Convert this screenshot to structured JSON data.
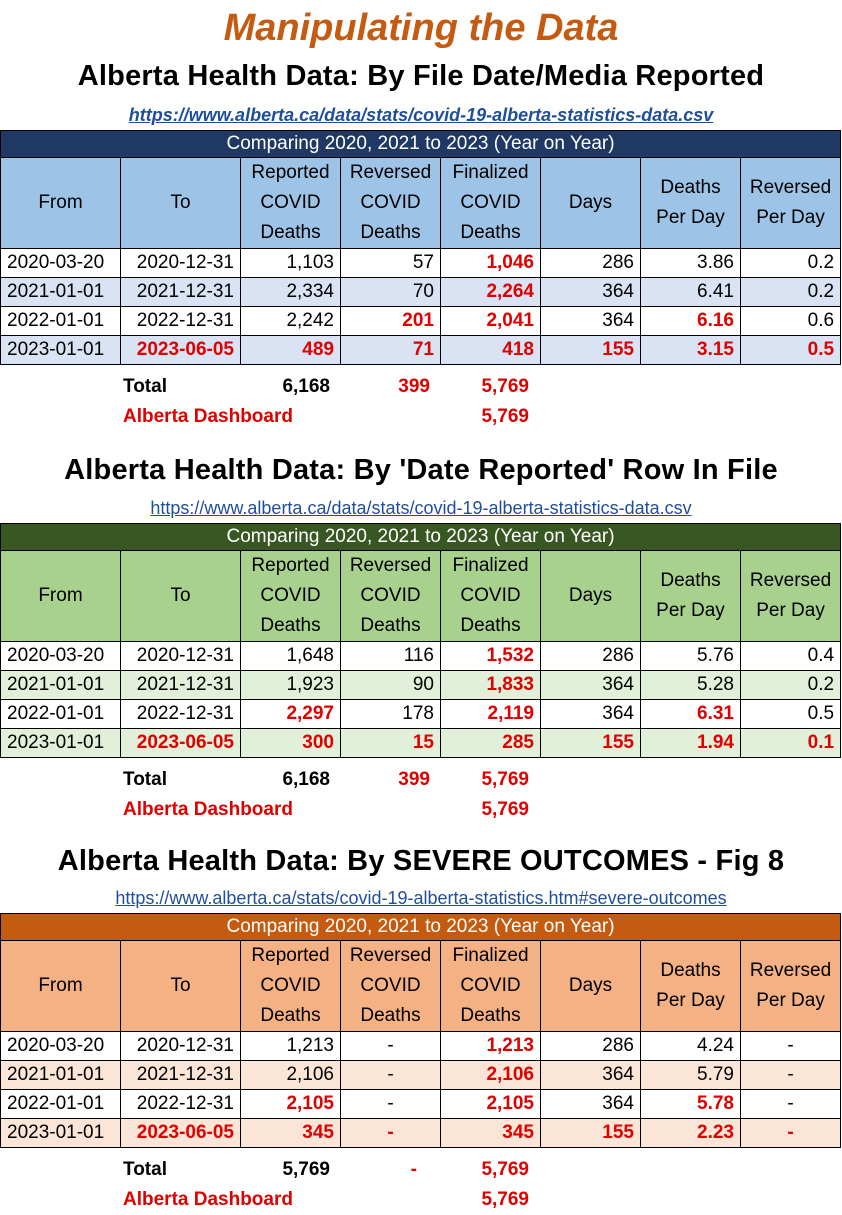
{
  "title": "Manipulating the Data",
  "headers": [
    "From",
    "To",
    "Reported COVID Deaths",
    "Reversed COVID Deaths",
    "Finalized COVID Deaths",
    "Days",
    "Deaths Per Day",
    "Reversed Per Day"
  ],
  "total_label": "Total",
  "dashboard_label": "Alberta Dashboard",
  "colors": {
    "title": "#c55a11",
    "link": "#1f4e9b",
    "highlight_red": "#e00000",
    "s1_caption": "#1f3864",
    "s1_header": "#9dc3e6",
    "s1_alt": "#dae3f3",
    "s2_caption": "#385723",
    "s2_header": "#a9d18e",
    "s2_alt": "#e2f0d9",
    "s3_caption": "#c55a11",
    "s3_header": "#f4b183",
    "s3_alt": "#fbe5d6"
  },
  "sections": [
    {
      "heading": "Alberta Health Data: By File Date/Media Reported",
      "link": "https://www.alberta.ca/data/stats/covid-19-alberta-statistics-data.csv",
      "caption": "Comparing 2020, 2021 to 2023 (Year on Year)",
      "rows": [
        {
          "from": "2020-03-20",
          "to": "2020-12-31",
          "reported": "1,103",
          "reversed": "57",
          "finalized": "1,046",
          "days": "286",
          "dpd": "3.86",
          "rpd": "0.2"
        },
        {
          "from": "2021-01-01",
          "to": "2021-12-31",
          "reported": "2,334",
          "reversed": "70",
          "finalized": "2,264",
          "days": "364",
          "dpd": "6.41",
          "rpd": "0.2"
        },
        {
          "from": "2022-01-01",
          "to": "2022-12-31",
          "reported": "2,242",
          "reversed": "201",
          "finalized": "2,041",
          "days": "364",
          "dpd": "6.16",
          "rpd": "0.6"
        },
        {
          "from": "2023-01-01",
          "to": "2023-06-05",
          "reported": "489",
          "reversed": "71",
          "finalized": "418",
          "days": "155",
          "dpd": "3.15",
          "rpd": "0.5"
        }
      ],
      "total": {
        "reported": "6,168",
        "reversed": "399",
        "finalized": "5,769"
      },
      "dashboard": "5,769"
    },
    {
      "heading": "Alberta Health Data: By 'Date Reported' Row In File",
      "link": "https://www.alberta.ca/data/stats/covid-19-alberta-statistics-data.csv",
      "caption": "Comparing 2020, 2021 to 2023 (Year on Year)",
      "rows": [
        {
          "from": "2020-03-20",
          "to": "2020-12-31",
          "reported": "1,648",
          "reversed": "116",
          "finalized": "1,532",
          "days": "286",
          "dpd": "5.76",
          "rpd": "0.4"
        },
        {
          "from": "2021-01-01",
          "to": "2021-12-31",
          "reported": "1,923",
          "reversed": "90",
          "finalized": "1,833",
          "days": "364",
          "dpd": "5.28",
          "rpd": "0.2"
        },
        {
          "from": "2022-01-01",
          "to": "2022-12-31",
          "reported": "2,297",
          "reversed": "178",
          "finalized": "2,119",
          "days": "364",
          "dpd": "6.31",
          "rpd": "0.5"
        },
        {
          "from": "2023-01-01",
          "to": "2023-06-05",
          "reported": "300",
          "reversed": "15",
          "finalized": "285",
          "days": "155",
          "dpd": "1.94",
          "rpd": "0.1"
        }
      ],
      "total": {
        "reported": "6,168",
        "reversed": "399",
        "finalized": "5,769"
      },
      "dashboard": "5,769"
    },
    {
      "heading": "Alberta Health Data: By SEVERE OUTCOMES - Fig 8",
      "link": "https://www.alberta.ca/stats/covid-19-alberta-statistics.htm#severe-outcomes",
      "caption": "Comparing 2020, 2021 to 2023 (Year on Year)",
      "rows": [
        {
          "from": "2020-03-20",
          "to": "2020-12-31",
          "reported": "1,213",
          "reversed": "-",
          "finalized": "1,213",
          "days": "286",
          "dpd": "4.24",
          "rpd": "-"
        },
        {
          "from": "2021-01-01",
          "to": "2021-12-31",
          "reported": "2,106",
          "reversed": "-",
          "finalized": "2,106",
          "days": "364",
          "dpd": "5.79",
          "rpd": "-"
        },
        {
          "from": "2022-01-01",
          "to": "2022-12-31",
          "reported": "2,105",
          "reversed": "-",
          "finalized": "2,105",
          "days": "364",
          "dpd": "5.78",
          "rpd": "-"
        },
        {
          "from": "2023-01-01",
          "to": "2023-06-05",
          "reported": "345",
          "reversed": "-",
          "finalized": "345",
          "days": "155",
          "dpd": "2.23",
          "rpd": "-"
        }
      ],
      "total": {
        "reported": "5,769",
        "reversed": "-",
        "finalized": "5,769"
      },
      "dashboard": "5,769"
    }
  ]
}
